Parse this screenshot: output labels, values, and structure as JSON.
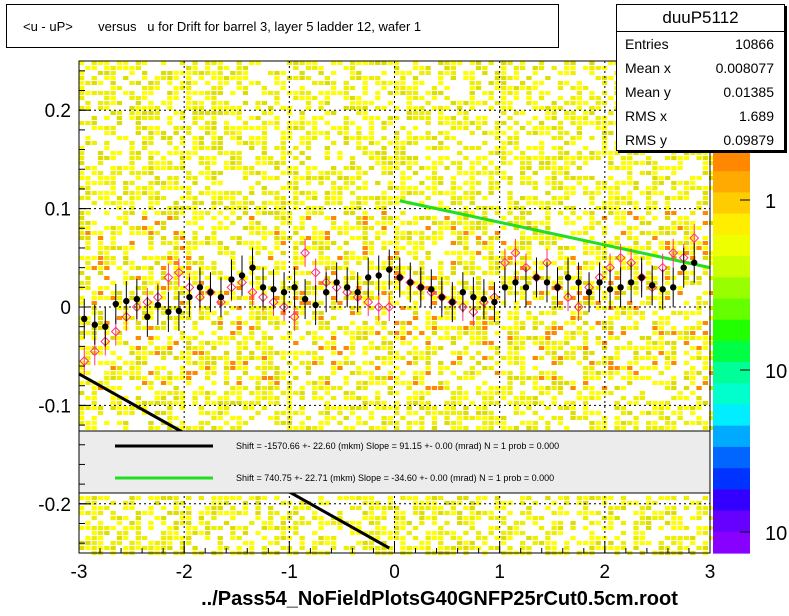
{
  "title": "<u - uP>       versus   u for Drift for barrel 3, layer 5 ladder 12, wafer 1",
  "stats": {
    "name": "duuP5112",
    "rows": [
      {
        "label": "Entries",
        "value": "10866"
      },
      {
        "label": "Mean x",
        "value": "0.008077"
      },
      {
        "label": "Mean y",
        "value": "0.01385"
      },
      {
        "label": "RMS x",
        "value": "1.689"
      },
      {
        "label": "RMS y",
        "value": "0.09879"
      }
    ]
  },
  "footer": "../Pass54_NoFieldPlotsG40GNFP25rCut0.5cm.root",
  "colors": {
    "black_fit": "#000000",
    "green_fit": "#22dd22",
    "heat_low": "#ffff00",
    "heat_mid": "#ff8800",
    "profile_marker": "#ff3377"
  },
  "chart_data": {
    "type": "heatmap",
    "xlim": [
      -3,
      3
    ],
    "ylim": [
      -0.25,
      0.25
    ],
    "xticks": [
      "-3",
      "-2",
      "-1",
      "0",
      "1",
      "2",
      "3"
    ],
    "yticks": [
      "-0.2",
      "-0.1",
      "0",
      "0.1",
      "0.2"
    ],
    "colorbar_labels": [
      "1",
      "10",
      "10"
    ],
    "grid": true,
    "profile_black": {
      "x": [
        -2.95,
        -2.85,
        -2.75,
        -2.65,
        -2.55,
        -2.45,
        -2.35,
        -2.25,
        -2.15,
        -2.05,
        -1.95,
        -1.85,
        -1.75,
        -1.65,
        -1.55,
        -1.45,
        -1.35,
        -1.25,
        -1.15,
        -1.05,
        -0.95,
        -0.85,
        -0.75,
        -0.65,
        -0.55,
        -0.45,
        -0.35,
        -0.25,
        -0.15,
        -0.05,
        0.05,
        0.15,
        0.25,
        0.35,
        0.45,
        0.55,
        0.65,
        0.75,
        0.85,
        0.95,
        1.05,
        1.15,
        1.25,
        1.35,
        1.45,
        1.55,
        1.65,
        1.75,
        1.85,
        1.95,
        2.05,
        2.15,
        2.25,
        2.35,
        2.45,
        2.55,
        2.65,
        2.75,
        2.85
      ],
      "y": [
        -0.012,
        -0.018,
        -0.02,
        0.003,
        0.006,
        0.008,
        -0.01,
        0.002,
        -0.005,
        -0.004,
        0.01,
        0.02,
        0.015,
        0.01,
        0.028,
        0.032,
        0.04,
        0.02,
        0.018,
        0.015,
        0.02,
        0.008,
        0.002,
        0.015,
        0.025,
        0.02,
        0.015,
        0.03,
        0.032,
        0.038,
        0.03,
        0.025,
        0.02,
        0.018,
        0.01,
        0.005,
        0.015,
        0.01,
        0.008,
        0.005,
        0.02,
        0.025,
        0.02,
        0.03,
        0.025,
        0.02,
        0.03,
        0.025,
        0.015,
        0.025,
        0.018,
        0.02,
        0.025,
        0.03,
        0.022,
        0.018,
        0.02,
        0.04,
        0.045
      ]
    },
    "profile_open": {
      "x": [
        -2.95,
        -2.85,
        -2.75,
        -2.65,
        -2.55,
        -2.45,
        -2.35,
        -2.25,
        -2.15,
        -2.05,
        -1.95,
        -1.85,
        -1.75,
        -1.65,
        -1.55,
        -1.45,
        -1.35,
        -1.25,
        -1.15,
        -1.05,
        -0.95,
        -0.85,
        -0.75,
        -0.65,
        -0.55,
        -0.45,
        -0.35,
        -0.25,
        -0.15,
        -0.05,
        0.05,
        0.15,
        0.25,
        0.35,
        0.45,
        0.55,
        0.65,
        0.75,
        0.85,
        0.95,
        1.05,
        1.15,
        1.25,
        1.35,
        1.45,
        1.55,
        1.65,
        1.75,
        1.85,
        1.95,
        2.05,
        2.15,
        2.25,
        2.35,
        2.45,
        2.55,
        2.65,
        2.75,
        2.85
      ],
      "y": [
        -0.055,
        -0.045,
        -0.035,
        -0.025,
        -0.01,
        0.0,
        0.005,
        0.01,
        0.03,
        0.035,
        0.02,
        0.01,
        0.015,
        0.005,
        0.02,
        0.025,
        0.015,
        0.01,
        0.005,
        0.0,
        -0.01,
        0.055,
        0.035,
        0.025,
        0.02,
        0.015,
        0.01,
        0.005,
        0.0,
        0.0,
        0.03,
        0.025,
        0.02,
        0.015,
        0.01,
        0.005,
        0.0,
        -0.005,
        0.005,
        0.01,
        0.045,
        0.055,
        0.04,
        0.03,
        0.045,
        0.02,
        0.01,
        0.0,
        0.02,
        0.03,
        0.04,
        0.05,
        0.045,
        0.03,
        0.02,
        0.04,
        0.055,
        0.05,
        0.07
      ]
    },
    "fits": [
      {
        "label": "Shift = -1570.66 +- 22.60 (mkm) Slope =    91.15 +- 0.00 (mrad)  N = 1 prob = 0.000",
        "color": "#000000",
        "x": [
          -3.0,
          -0.05
        ],
        "y": [
          -0.068,
          -0.245
        ]
      },
      {
        "label": "Shift =   740.75 +- 22.71 (mkm) Slope =    -34.60 +- 0.00 (mrad)  N = 1 prob = 0.000",
        "color": "#22dd22",
        "x": [
          0.05,
          3.0
        ],
        "y": [
          0.108,
          0.04
        ]
      }
    ]
  }
}
